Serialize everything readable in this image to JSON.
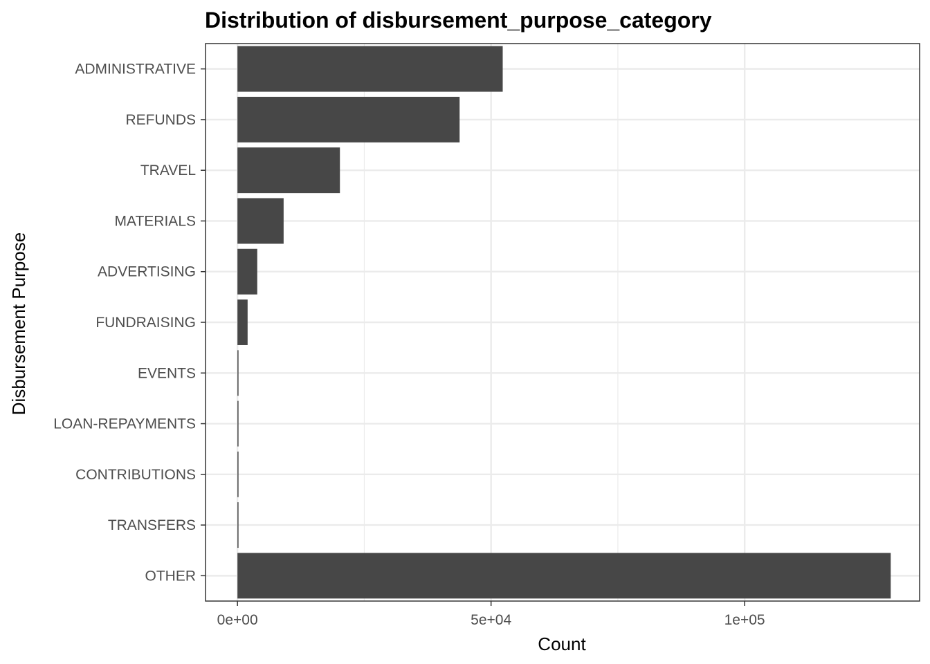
{
  "chart_data": {
    "type": "bar",
    "orientation": "horizontal",
    "title": "Distribution of disbursement_purpose_category",
    "xlabel": "Count",
    "ylabel": "Disbursement Purpose",
    "categories": [
      "ADMINISTRATIVE",
      "REFUNDS",
      "TRAVEL",
      "MATERIALS",
      "ADVERTISING",
      "FUNDRAISING",
      "EVENTS",
      "LOAN-REPAYMENTS",
      "CONTRIBUTIONS",
      "TRANSFERS",
      "OTHER"
    ],
    "values": [
      52300,
      43800,
      20200,
      9100,
      3900,
      2000,
      150,
      120,
      80,
      60,
      128800
    ],
    "xlim": [
      -6300,
      134500
    ],
    "x_ticks": [
      {
        "value": 0,
        "label": "0e+00"
      },
      {
        "value": 50000,
        "label": "5e+04"
      },
      {
        "value": 100000,
        "label": "1e+05"
      }
    ],
    "grid": true,
    "colors": {
      "bar": "#474747",
      "grid": "#ebebeb",
      "panel_border": "#333333",
      "tick_text": "#4d4d4d"
    }
  }
}
